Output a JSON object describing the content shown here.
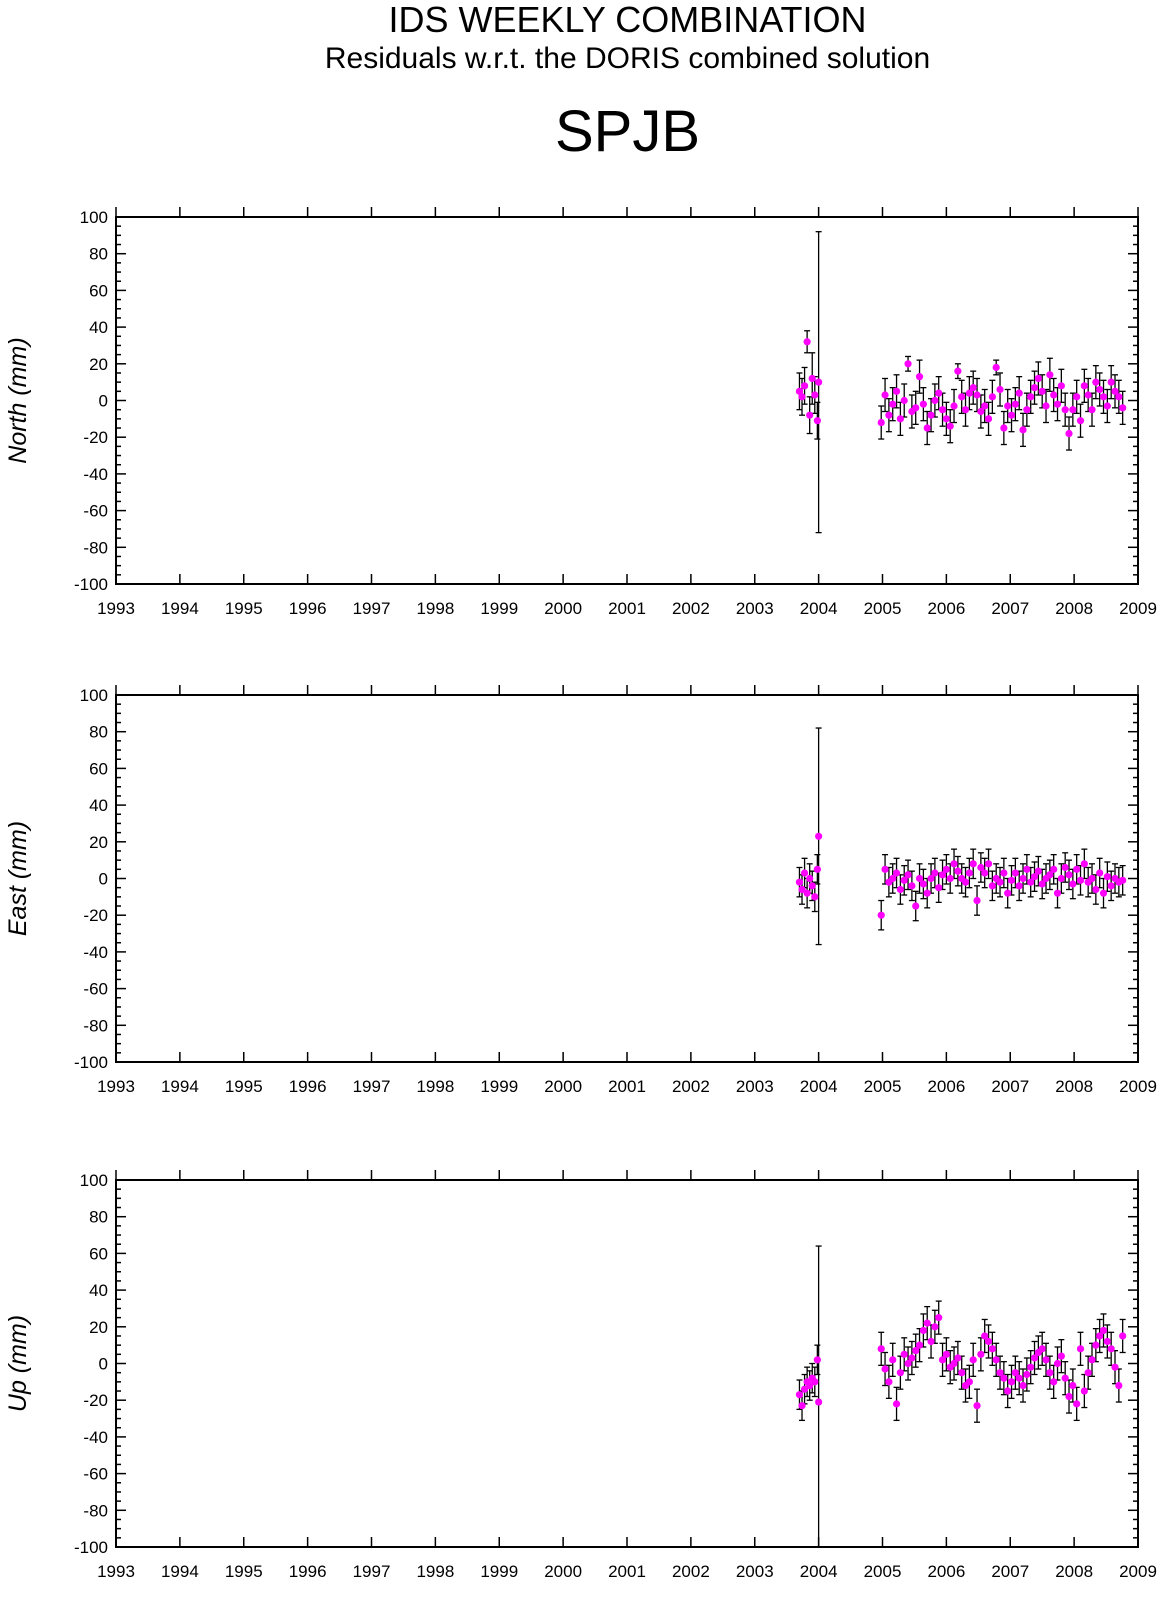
{
  "header": {
    "title": "IDS WEEKLY COMBINATION",
    "subtitle": "Residuals w.r.t. the DORIS combined solution",
    "station": "SPJB"
  },
  "colors": {
    "marker": "#ff00ff",
    "errorbar": "#000000",
    "axis": "#000000"
  },
  "chart_data": [
    {
      "type": "scatter",
      "title": "",
      "xlabel": "",
      "ylabel": "North (mm)",
      "xlim": [
        1993,
        2009
      ],
      "ylim": [
        -100,
        100
      ],
      "xticks": [
        "1993",
        "1994",
        "1995",
        "1996",
        "1997",
        "1998",
        "1999",
        "2000",
        "2001",
        "2002",
        "2003",
        "2004",
        "2005",
        "2006",
        "2007",
        "2008",
        "2009"
      ],
      "yticks": [
        "100",
        "80",
        "60",
        "40",
        "20",
        "0",
        "-20",
        "-40",
        "-60",
        "-80",
        "-100"
      ],
      "grid": false,
      "series": [
        {
          "x": [
            2003.7,
            2003.74,
            2003.78,
            2003.82,
            2003.86,
            2003.9,
            2003.94,
            2003.98,
            2004.0,
            2004.98,
            2005.04,
            2005.1,
            2005.16,
            2005.22,
            2005.28,
            2005.34,
            2005.4,
            2005.46,
            2005.52,
            2005.58,
            2005.64,
            2005.7,
            2005.76,
            2005.82,
            2005.88,
            2005.94,
            2006.0,
            2006.06,
            2006.12,
            2006.18,
            2006.24,
            2006.3,
            2006.36,
            2006.42,
            2006.48,
            2006.54,
            2006.6,
            2006.66,
            2006.72,
            2006.78,
            2006.84,
            2006.9,
            2006.96,
            2007.02,
            2007.08,
            2007.14,
            2007.2,
            2007.26,
            2007.32,
            2007.38,
            2007.44,
            2007.5,
            2007.56,
            2007.62,
            2007.68,
            2007.74,
            2007.8,
            2007.86,
            2007.92,
            2007.98,
            2008.04,
            2008.1,
            2008.16,
            2008.22,
            2008.28,
            2008.34,
            2008.4,
            2008.46,
            2008.52,
            2008.58,
            2008.64,
            2008.7,
            2008.76
          ],
          "y": [
            5,
            2,
            8,
            32,
            -8,
            12,
            3,
            -11,
            10,
            -12,
            3,
            -8,
            -2,
            5,
            -10,
            0,
            20,
            -6,
            -4,
            13,
            -2,
            -15,
            -8,
            0,
            4,
            -5,
            -10,
            -14,
            -3,
            16,
            2,
            -5,
            4,
            7,
            3,
            -6,
            -3,
            -10,
            2,
            18,
            6,
            -15,
            -3,
            -8,
            -2,
            4,
            -16,
            -5,
            2,
            7,
            12,
            5,
            -3,
            14,
            3,
            -2,
            8,
            -5,
            -18,
            -5,
            2,
            -11,
            8,
            3,
            -5,
            10,
            6,
            2,
            -3,
            10,
            5,
            2,
            -4
          ],
          "err": [
            10,
            10,
            10,
            6,
            10,
            14,
            10,
            10,
            82,
            9,
            9,
            9,
            9,
            9,
            9,
            9,
            4,
            9,
            9,
            9,
            9,
            9,
            9,
            9,
            9,
            9,
            9,
            9,
            9,
            4,
            9,
            9,
            9,
            9,
            9,
            9,
            9,
            9,
            9,
            4,
            9,
            9,
            9,
            9,
            9,
            9,
            9,
            9,
            9,
            9,
            9,
            9,
            9,
            9,
            9,
            9,
            9,
            9,
            9,
            9,
            9,
            9,
            9,
            9,
            9,
            9,
            9,
            9,
            9,
            9,
            9,
            9,
            9
          ]
        }
      ]
    },
    {
      "type": "scatter",
      "title": "",
      "xlabel": "",
      "ylabel": "East (mm)",
      "xlim": [
        1993,
        2009
      ],
      "ylim": [
        -100,
        100
      ],
      "xticks": [
        "1993",
        "1994",
        "1995",
        "1996",
        "1997",
        "1998",
        "1999",
        "2000",
        "2001",
        "2002",
        "2003",
        "2004",
        "2005",
        "2006",
        "2007",
        "2008",
        "2009"
      ],
      "yticks": [
        "100",
        "80",
        "60",
        "40",
        "20",
        "0",
        "-20",
        "-40",
        "-60",
        "-80",
        "-100"
      ],
      "grid": false,
      "series": [
        {
          "x": [
            2003.7,
            2003.74,
            2003.78,
            2003.82,
            2003.86,
            2003.9,
            2003.94,
            2003.98,
            2004.0,
            2004.98,
            2005.04,
            2005.1,
            2005.16,
            2005.22,
            2005.28,
            2005.34,
            2005.4,
            2005.46,
            2005.52,
            2005.58,
            2005.64,
            2005.7,
            2005.76,
            2005.82,
            2005.88,
            2005.94,
            2006.0,
            2006.06,
            2006.12,
            2006.18,
            2006.24,
            2006.3,
            2006.36,
            2006.42,
            2006.48,
            2006.54,
            2006.6,
            2006.66,
            2006.72,
            2006.78,
            2006.84,
            2006.9,
            2006.96,
            2007.02,
            2007.08,
            2007.14,
            2007.2,
            2007.26,
            2007.32,
            2007.38,
            2007.44,
            2007.5,
            2007.56,
            2007.62,
            2007.68,
            2007.74,
            2007.8,
            2007.86,
            2007.92,
            2007.98,
            2008.04,
            2008.1,
            2008.16,
            2008.22,
            2008.28,
            2008.34,
            2008.4,
            2008.46,
            2008.52,
            2008.58,
            2008.64,
            2008.7,
            2008.76
          ],
          "y": [
            -2,
            -6,
            3,
            -8,
            0,
            -4,
            -10,
            5,
            23,
            -20,
            5,
            -2,
            0,
            3,
            -6,
            -1,
            2,
            -4,
            -15,
            0,
            -3,
            -8,
            0,
            3,
            -5,
            2,
            5,
            0,
            8,
            4,
            0,
            -2,
            3,
            8,
            -12,
            6,
            3,
            8,
            -4,
            0,
            -2,
            3,
            -8,
            -1,
            3,
            -4,
            0,
            5,
            -2,
            1,
            4,
            -3,
            0,
            2,
            5,
            -8,
            0,
            6,
            2,
            -3,
            5,
            -1,
            8,
            -2,
            0,
            -6,
            3,
            -8,
            1,
            -4,
            0,
            -2,
            -1
          ],
          "err": [
            8,
            8,
            8,
            8,
            8,
            8,
            8,
            8,
            59,
            8,
            8,
            8,
            8,
            8,
            8,
            8,
            8,
            8,
            8,
            8,
            8,
            8,
            8,
            8,
            8,
            8,
            8,
            8,
            8,
            8,
            8,
            8,
            8,
            8,
            8,
            8,
            8,
            8,
            8,
            8,
            8,
            8,
            8,
            8,
            8,
            8,
            8,
            8,
            8,
            8,
            8,
            8,
            8,
            8,
            8,
            8,
            8,
            8,
            8,
            8,
            8,
            8,
            8,
            8,
            8,
            8,
            8,
            8,
            8,
            8,
            8,
            8,
            8
          ]
        }
      ]
    },
    {
      "type": "scatter",
      "title": "",
      "xlabel": "",
      "ylabel": "Up (mm)",
      "xlim": [
        1993,
        2009
      ],
      "ylim": [
        -100,
        100
      ],
      "xticks": [
        "1993",
        "1994",
        "1995",
        "1996",
        "1997",
        "1998",
        "1999",
        "2000",
        "2001",
        "2002",
        "2003",
        "2004",
        "2005",
        "2006",
        "2007",
        "2008",
        "2009"
      ],
      "yticks": [
        "100",
        "80",
        "60",
        "40",
        "20",
        "0",
        "-20",
        "-40",
        "-60",
        "-80",
        "-100"
      ],
      "grid": false,
      "series": [
        {
          "x": [
            2003.7,
            2003.74,
            2003.78,
            2003.82,
            2003.86,
            2003.9,
            2003.94,
            2003.98,
            2004.0,
            2004.98,
            2005.04,
            2005.1,
            2005.16,
            2005.22,
            2005.28,
            2005.34,
            2005.4,
            2005.46,
            2005.52,
            2005.58,
            2005.64,
            2005.7,
            2005.76,
            2005.82,
            2005.88,
            2005.94,
            2006.0,
            2006.06,
            2006.12,
            2006.18,
            2006.24,
            2006.3,
            2006.36,
            2006.42,
            2006.48,
            2006.54,
            2006.6,
            2006.66,
            2006.72,
            2006.78,
            2006.84,
            2006.9,
            2006.96,
            2007.02,
            2007.08,
            2007.14,
            2007.2,
            2007.26,
            2007.32,
            2007.38,
            2007.44,
            2007.5,
            2007.56,
            2007.62,
            2007.68,
            2007.74,
            2007.8,
            2007.86,
            2007.92,
            2007.98,
            2008.04,
            2008.1,
            2008.16,
            2008.22,
            2008.28,
            2008.34,
            2008.4,
            2008.46,
            2008.52,
            2008.58,
            2008.64,
            2008.7,
            2008.76
          ],
          "y": [
            -17,
            -23,
            -14,
            -10,
            -12,
            -8,
            -10,
            2,
            -21,
            8,
            -3,
            -10,
            2,
            -22,
            -5,
            5,
            0,
            3,
            7,
            10,
            18,
            22,
            12,
            20,
            25,
            2,
            5,
            -2,
            0,
            3,
            -5,
            -12,
            -10,
            2,
            -23,
            5,
            15,
            12,
            8,
            2,
            -5,
            -8,
            -15,
            -10,
            -5,
            -8,
            -12,
            -6,
            -2,
            3,
            6,
            8,
            2,
            -5,
            -10,
            0,
            4,
            -8,
            -18,
            -12,
            -22,
            8,
            -15,
            -5,
            2,
            10,
            15,
            18,
            12,
            8,
            -2,
            -12,
            15
          ],
          "err": [
            8,
            8,
            8,
            8,
            8,
            8,
            8,
            8,
            85,
            9,
            9,
            9,
            9,
            9,
            9,
            9,
            9,
            9,
            9,
            9,
            9,
            9,
            9,
            9,
            9,
            9,
            9,
            9,
            9,
            9,
            9,
            9,
            9,
            9,
            9,
            9,
            9,
            9,
            9,
            9,
            9,
            9,
            9,
            9,
            9,
            9,
            9,
            9,
            9,
            9,
            9,
            9,
            9,
            9,
            9,
            9,
            9,
            9,
            9,
            9,
            9,
            9,
            9,
            9,
            9,
            9,
            9,
            9,
            9,
            9,
            9,
            9,
            9
          ]
        }
      ]
    }
  ]
}
